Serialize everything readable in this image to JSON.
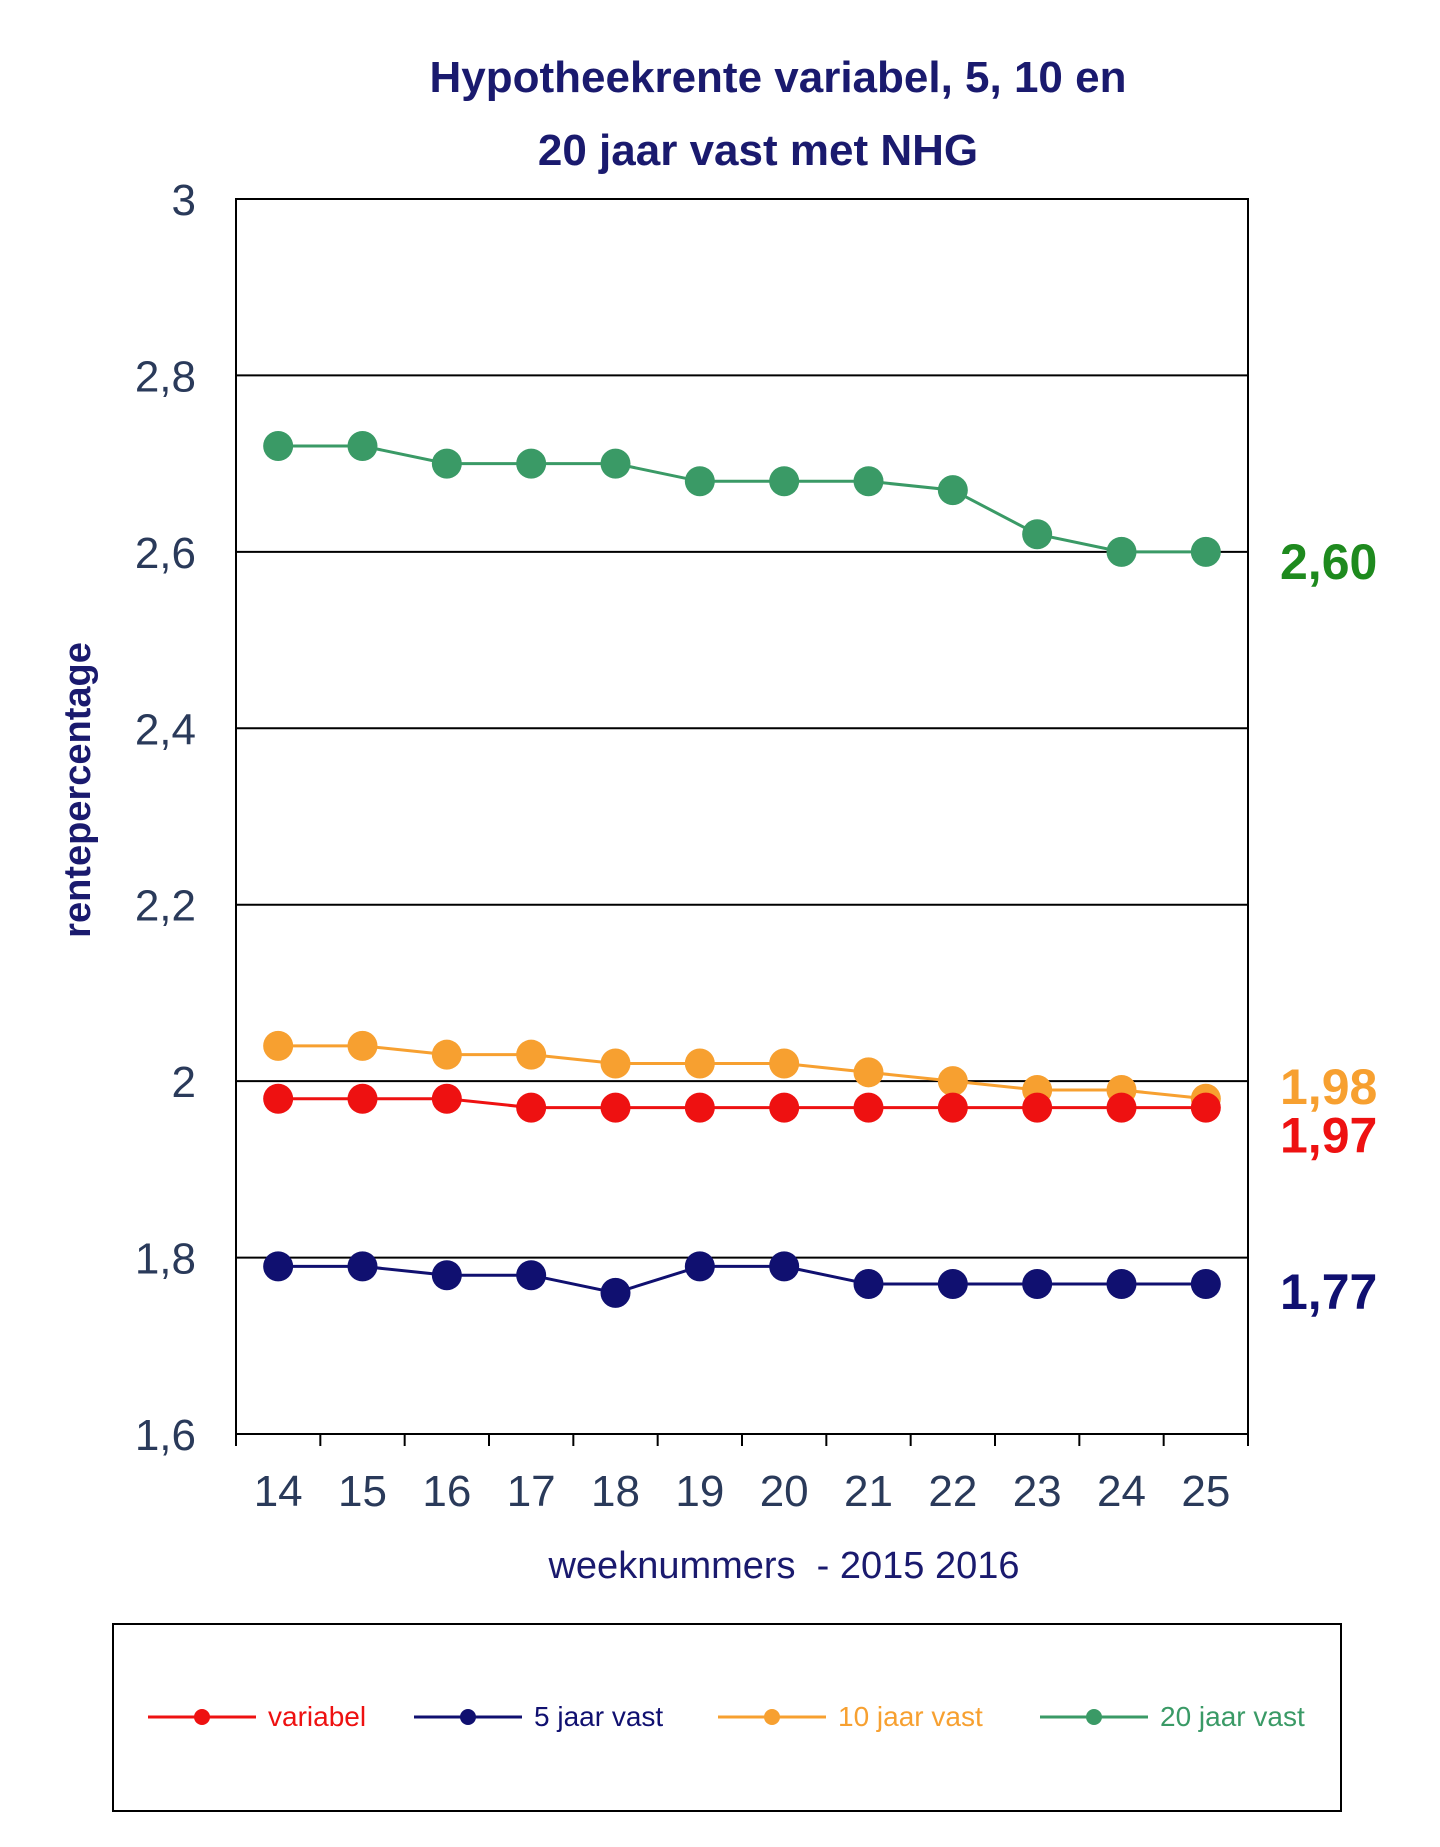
{
  "chart_data": {
    "type": "line",
    "title_lines": [
      "Hypotheekrente variabel, 5, 10 en",
      "20 jaar vast met NHG"
    ],
    "xlabel": "weeknummers  - 2015 2016",
    "ylabel": "rentepercentage",
    "x": [
      "14",
      "15",
      "16",
      "17",
      "18",
      "19",
      "20",
      "21",
      "22",
      "23",
      "24",
      "25"
    ],
    "ylim": [
      1.6,
      3.0
    ],
    "yticks": [
      1.6,
      1.8,
      2.0,
      2.2,
      2.4,
      2.6,
      2.8,
      3.0
    ],
    "ytick_labels": [
      "1,6",
      "1,8",
      "2",
      "2,2",
      "2,4",
      "2,6",
      "2,8",
      "3"
    ],
    "grid": true,
    "legend_position": "bottom",
    "series": [
      {
        "name": "variabel",
        "color": "#ee1111",
        "values": [
          1.98,
          1.98,
          1.98,
          1.97,
          1.97,
          1.97,
          1.97,
          1.97,
          1.97,
          1.97,
          1.97,
          1.97
        ],
        "end_label": "1,97"
      },
      {
        "name": "5 jaar vast",
        "color": "#101070",
        "values": [
          1.79,
          1.79,
          1.78,
          1.78,
          1.76,
          1.79,
          1.79,
          1.77,
          1.77,
          1.77,
          1.77,
          1.77
        ],
        "end_label": "1,77"
      },
      {
        "name": "10 jaar vast",
        "color": "#f7a030",
        "values": [
          2.04,
          2.04,
          2.03,
          2.03,
          2.02,
          2.02,
          2.02,
          2.01,
          2.0,
          1.99,
          1.99,
          1.98
        ],
        "end_label": "1,98"
      },
      {
        "name": "20 jaar vast",
        "color": "#3a9a66",
        "end_label_color": "#1e8a1e",
        "values": [
          2.72,
          2.72,
          2.7,
          2.7,
          2.7,
          2.68,
          2.68,
          2.68,
          2.67,
          2.62,
          2.6,
          2.6
        ],
        "end_label": "2,60"
      }
    ],
    "draw_order": [
      2,
      0,
      1,
      3
    ]
  }
}
